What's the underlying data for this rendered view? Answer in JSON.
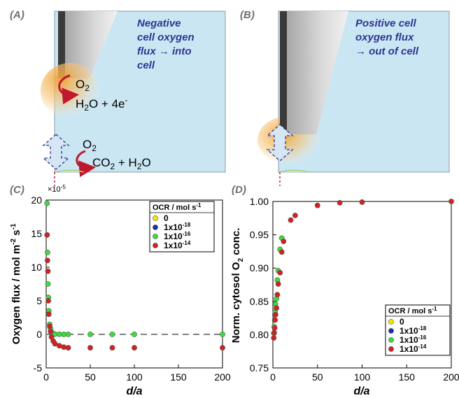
{
  "panels": {
    "A": {
      "label": "(A)",
      "annotation": [
        "Negative",
        "cell oxygen",
        "flux → into",
        "cell"
      ],
      "tip_reaction": {
        "o2": "O2",
        "products": "H2O + 4e-"
      },
      "cell_reaction": {
        "o2": "O2",
        "products": "CO2 + H2O"
      }
    },
    "B": {
      "label": "(B)",
      "annotation": [
        "Positive cell",
        "oxygen flux",
        "→ out of cell"
      ]
    },
    "C": {
      "label": "(C)"
    },
    "D": {
      "label": "(D)"
    }
  },
  "legend": {
    "title": "OCR / mol s-1",
    "entries": [
      {
        "label": "0",
        "color": "#f5e600"
      },
      {
        "label": "1x10-18",
        "color": "#1a2fb0"
      },
      {
        "label": "1x10-16",
        "color": "#3ddc3d"
      },
      {
        "label": "1x10-14",
        "color": "#d42020"
      }
    ]
  },
  "chart_data": [
    {
      "type": "scatter",
      "panel": "C",
      "xlabel": "d/a",
      "ylabel": "Oxygen flux / mol m-2 s-1",
      "y_exponent_label": "×10-5",
      "xlim": [
        0,
        200
      ],
      "ylim": [
        -5,
        20
      ],
      "xticks": [
        0,
        50,
        100,
        150,
        200
      ],
      "yticks": [
        -5,
        0,
        5,
        10,
        15,
        20
      ],
      "reference_line": {
        "y": 0,
        "style": "dashed",
        "color": "#808080"
      },
      "series": [
        {
          "name": "1x10-16",
          "color": "#3ddc3d",
          "x": [
            1,
            1.5,
            2,
            2.5,
            3,
            4,
            5,
            6,
            8,
            10,
            15,
            20,
            25,
            50,
            75,
            100,
            200
          ],
          "y": [
            19.5,
            12.2,
            7.5,
            5.5,
            3.5,
            1.5,
            0.8,
            0.3,
            0.1,
            0.03,
            0.01,
            0.0,
            0.0,
            0.0,
            0.0,
            0.0,
            0.0
          ]
        },
        {
          "name": "1x10-14",
          "color": "#d42020",
          "x": [
            1,
            1.5,
            2,
            2.5,
            3,
            4,
            5,
            6,
            8,
            10,
            15,
            20,
            25,
            50,
            75,
            100,
            200
          ],
          "y": [
            14.8,
            11.0,
            9.4,
            5.0,
            3.0,
            1.2,
            0.4,
            -0.4,
            -1.0,
            -1.4,
            -1.7,
            -1.9,
            -2.0,
            -2.0,
            -2.0,
            -2.0,
            -2.0
          ]
        }
      ]
    },
    {
      "type": "scatter",
      "panel": "D",
      "xlabel": "d/a",
      "ylabel": "Norm. cytosol O2 conc.",
      "xlim": [
        0,
        200
      ],
      "ylim": [
        0.75,
        1.0
      ],
      "xticks": [
        0,
        50,
        100,
        150,
        200
      ],
      "yticks": [
        0.75,
        0.8,
        0.85,
        0.9,
        0.95,
        1.0
      ],
      "series": [
        {
          "name": "1x10-16",
          "color": "#3ddc3d",
          "x": [
            1,
            1.5,
            2,
            2.5,
            3,
            4,
            5,
            6,
            8,
            10
          ],
          "y": [
            0.802,
            0.812,
            0.822,
            0.834,
            0.846,
            0.854,
            0.882,
            0.896,
            0.928,
            0.945
          ]
        },
        {
          "name": "1x10-14",
          "color": "#d42020",
          "x": [
            1,
            1.5,
            2,
            2.5,
            3,
            4,
            5,
            6,
            8,
            10,
            12,
            20,
            25,
            50,
            75,
            100,
            200
          ],
          "y": [
            0.795,
            0.803,
            0.81,
            0.822,
            0.83,
            0.84,
            0.86,
            0.876,
            0.893,
            0.924,
            0.94,
            0.972,
            0.979,
            0.994,
            0.998,
            0.999,
            1.0
          ]
        }
      ]
    }
  ]
}
